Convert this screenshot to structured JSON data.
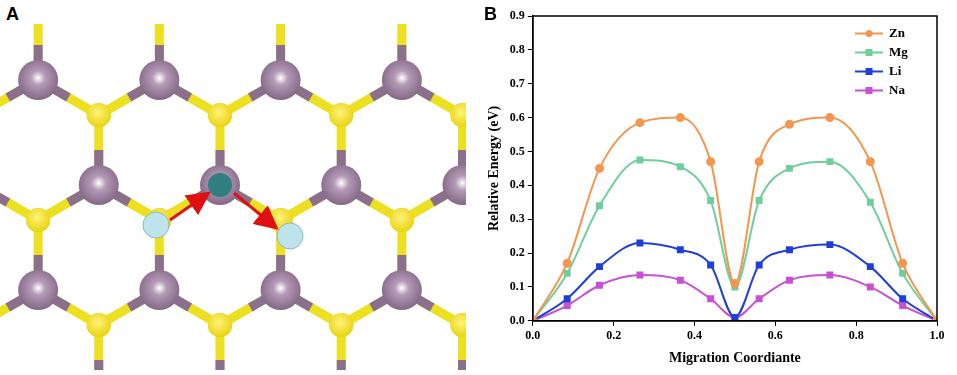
{
  "panel_labels": [
    "A",
    "B"
  ],
  "chart_data": {
    "type": "line",
    "x_label": "Migration Coordiante",
    "y_label": "Relative Energy (eV)",
    "x": [
      0,
      0.085,
      0.165,
      0.265,
      0.365,
      0.44,
      0.5,
      0.56,
      0.635,
      0.735,
      0.835,
      0.915,
      1
    ],
    "series": [
      {
        "name": "Zn",
        "color": "#f5964f",
        "marker": "circle",
        "values": [
          0,
          0.17,
          0.45,
          0.585,
          0.6,
          0.47,
          0.11,
          0.47,
          0.58,
          0.6,
          0.47,
          0.17,
          0
        ]
      },
      {
        "name": "Mg",
        "color": "#6fcf9c",
        "marker": "square",
        "values": [
          0,
          0.14,
          0.34,
          0.475,
          0.455,
          0.355,
          0.1,
          0.355,
          0.45,
          0.47,
          0.35,
          0.14,
          0
        ]
      },
      {
        "name": "Li",
        "color": "#1f3fd6",
        "marker": "square",
        "values": [
          0,
          0.065,
          0.16,
          0.23,
          0.21,
          0.165,
          0.01,
          0.165,
          0.21,
          0.225,
          0.16,
          0.065,
          0
        ]
      },
      {
        "name": "Na",
        "color": "#c94fd6",
        "marker": "square",
        "values": [
          0,
          0.045,
          0.105,
          0.135,
          0.12,
          0.065,
          0.01,
          0.065,
          0.12,
          0.135,
          0.1,
          0.045,
          0
        ]
      }
    ],
    "xlim": [
      0,
      1
    ],
    "xticks": [
      {
        "value": 0,
        "label": "0.0"
      },
      0.2,
      0.4,
      0.6,
      0.8,
      {
        "value": 1,
        "label": "1.0"
      }
    ],
    "ylim": [
      0,
      0.9
    ],
    "yticks": [
      {
        "value": 0,
        "label": "0.0"
      },
      0.1,
      0.2,
      0.3,
      0.4,
      0.5,
      0.6,
      0.7,
      0.8,
      0.9
    ],
    "grid": false,
    "legend": "upper right"
  }
}
